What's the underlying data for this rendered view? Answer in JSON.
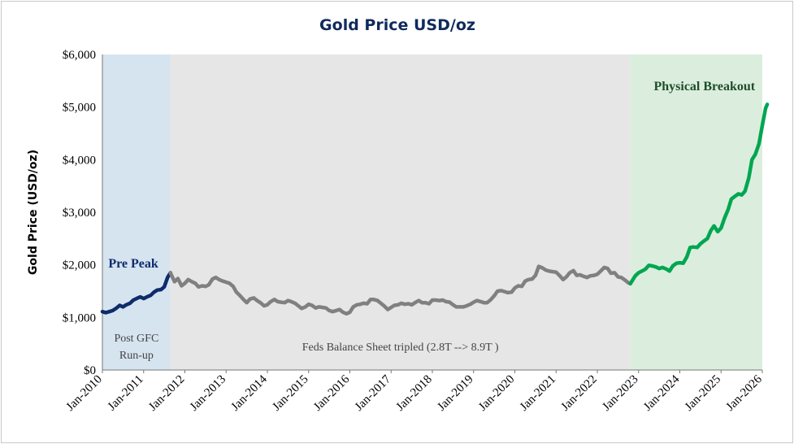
{
  "chart_data": {
    "type": "line",
    "title": "Gold Price USD/oz",
    "ylabel": "Gold Price (USD/oz)",
    "xlabel": "",
    "ylim": [
      0,
      6000
    ],
    "y_ticks": [
      "$0",
      "$1,000",
      "$2,000",
      "$3,000",
      "$4,000",
      "$5,000",
      "$6,000"
    ],
    "x_ticks": [
      "Jan-2010",
      "Jan-2011",
      "Jan-2012",
      "Jan-2013",
      "Jan-2014",
      "Jan-2015",
      "Jan-2016",
      "Jan-2017",
      "Jan-2018",
      "Jan-2019",
      "Jan-2020",
      "Jan-2021",
      "Jan-2022",
      "Jan-2023",
      "Jan-2024",
      "Jan-2025",
      "Jan-2026"
    ],
    "x_range": [
      2010.0,
      2026.0
    ],
    "grid": false,
    "regions": [
      {
        "name": "pre",
        "x0": 2010.0,
        "x1": 2011.65,
        "color": "#d6e4f0",
        "labels": [
          {
            "text": "Post GFC",
            "kind": "plain"
          },
          {
            "text": "Run-up",
            "kind": "plain"
          },
          {
            "text": "Pre Peak",
            "kind": "bold"
          }
        ]
      },
      {
        "name": "mid",
        "x0": 2011.65,
        "x1": 2022.8,
        "color": "#e6e6e6",
        "labels": [
          {
            "text": "Feds Balance Sheet tripled (2.8T --> 8.9T )",
            "kind": "plain"
          }
        ]
      },
      {
        "name": "post",
        "x0": 2022.8,
        "x1": 2026.0,
        "color": "#dbeedd",
        "labels": [
          {
            "text": "Physical Breakout",
            "kind": "bold"
          }
        ]
      }
    ],
    "series": [
      {
        "color": "#0d2c6b",
        "points": [
          [
            2010.0,
            1110
          ],
          [
            2010.08,
            1090
          ],
          [
            2010.17,
            1110
          ],
          [
            2010.25,
            1130
          ],
          [
            2010.33,
            1170
          ],
          [
            2010.42,
            1230
          ],
          [
            2010.5,
            1200
          ],
          [
            2010.58,
            1240
          ],
          [
            2010.67,
            1270
          ],
          [
            2010.75,
            1330
          ],
          [
            2010.83,
            1360
          ],
          [
            2010.92,
            1390
          ],
          [
            2011.0,
            1360
          ],
          [
            2011.08,
            1390
          ],
          [
            2011.17,
            1420
          ],
          [
            2011.25,
            1480
          ],
          [
            2011.33,
            1520
          ],
          [
            2011.42,
            1530
          ],
          [
            2011.5,
            1580
          ],
          [
            2011.58,
            1760
          ],
          [
            2011.65,
            1850
          ]
        ]
      },
      {
        "color": "#808080",
        "points": [
          [
            2011.65,
            1850
          ],
          [
            2011.75,
            1680
          ],
          [
            2011.83,
            1740
          ],
          [
            2011.92,
            1600
          ],
          [
            2012.0,
            1650
          ],
          [
            2012.08,
            1720
          ],
          [
            2012.17,
            1680
          ],
          [
            2012.25,
            1650
          ],
          [
            2012.33,
            1580
          ],
          [
            2012.42,
            1600
          ],
          [
            2012.5,
            1590
          ],
          [
            2012.58,
            1620
          ],
          [
            2012.67,
            1730
          ],
          [
            2012.75,
            1760
          ],
          [
            2012.83,
            1720
          ],
          [
            2012.92,
            1690
          ],
          [
            2013.0,
            1670
          ],
          [
            2013.08,
            1650
          ],
          [
            2013.17,
            1590
          ],
          [
            2013.25,
            1480
          ],
          [
            2013.33,
            1420
          ],
          [
            2013.42,
            1340
          ],
          [
            2013.5,
            1280
          ],
          [
            2013.58,
            1350
          ],
          [
            2013.67,
            1370
          ],
          [
            2013.75,
            1320
          ],
          [
            2013.83,
            1280
          ],
          [
            2013.92,
            1220
          ],
          [
            2014.0,
            1240
          ],
          [
            2014.08,
            1300
          ],
          [
            2014.17,
            1340
          ],
          [
            2014.25,
            1300
          ],
          [
            2014.33,
            1290
          ],
          [
            2014.42,
            1280
          ],
          [
            2014.5,
            1320
          ],
          [
            2014.58,
            1300
          ],
          [
            2014.67,
            1270
          ],
          [
            2014.75,
            1220
          ],
          [
            2014.83,
            1170
          ],
          [
            2014.92,
            1200
          ],
          [
            2015.0,
            1250
          ],
          [
            2015.08,
            1230
          ],
          [
            2015.17,
            1180
          ],
          [
            2015.25,
            1200
          ],
          [
            2015.33,
            1190
          ],
          [
            2015.42,
            1180
          ],
          [
            2015.5,
            1130
          ],
          [
            2015.58,
            1110
          ],
          [
            2015.67,
            1130
          ],
          [
            2015.75,
            1150
          ],
          [
            2015.83,
            1100
          ],
          [
            2015.92,
            1070
          ],
          [
            2016.0,
            1100
          ],
          [
            2016.08,
            1200
          ],
          [
            2016.17,
            1240
          ],
          [
            2016.25,
            1250
          ],
          [
            2016.33,
            1270
          ],
          [
            2016.42,
            1260
          ],
          [
            2016.5,
            1340
          ],
          [
            2016.58,
            1340
          ],
          [
            2016.67,
            1320
          ],
          [
            2016.75,
            1270
          ],
          [
            2016.83,
            1220
          ],
          [
            2016.92,
            1150
          ],
          [
            2017.0,
            1190
          ],
          [
            2017.08,
            1230
          ],
          [
            2017.17,
            1240
          ],
          [
            2017.25,
            1270
          ],
          [
            2017.33,
            1250
          ],
          [
            2017.42,
            1260
          ],
          [
            2017.5,
            1240
          ],
          [
            2017.58,
            1280
          ],
          [
            2017.67,
            1320
          ],
          [
            2017.75,
            1280
          ],
          [
            2017.83,
            1280
          ],
          [
            2017.92,
            1260
          ],
          [
            2018.0,
            1330
          ],
          [
            2018.08,
            1330
          ],
          [
            2018.17,
            1320
          ],
          [
            2018.25,
            1330
          ],
          [
            2018.33,
            1300
          ],
          [
            2018.42,
            1290
          ],
          [
            2018.5,
            1240
          ],
          [
            2018.58,
            1200
          ],
          [
            2018.67,
            1200
          ],
          [
            2018.75,
            1200
          ],
          [
            2018.83,
            1220
          ],
          [
            2018.92,
            1250
          ],
          [
            2019.0,
            1290
          ],
          [
            2019.08,
            1320
          ],
          [
            2019.17,
            1300
          ],
          [
            2019.25,
            1280
          ],
          [
            2019.33,
            1280
          ],
          [
            2019.42,
            1340
          ],
          [
            2019.5,
            1410
          ],
          [
            2019.58,
            1500
          ],
          [
            2019.67,
            1510
          ],
          [
            2019.75,
            1490
          ],
          [
            2019.83,
            1470
          ],
          [
            2019.92,
            1480
          ],
          [
            2020.0,
            1560
          ],
          [
            2020.08,
            1600
          ],
          [
            2020.17,
            1590
          ],
          [
            2020.25,
            1690
          ],
          [
            2020.33,
            1720
          ],
          [
            2020.42,
            1730
          ],
          [
            2020.5,
            1800
          ],
          [
            2020.58,
            1970
          ],
          [
            2020.67,
            1940
          ],
          [
            2020.75,
            1900
          ],
          [
            2020.83,
            1880
          ],
          [
            2020.92,
            1870
          ],
          [
            2021.0,
            1860
          ],
          [
            2021.08,
            1800
          ],
          [
            2021.17,
            1720
          ],
          [
            2021.25,
            1770
          ],
          [
            2021.33,
            1850
          ],
          [
            2021.42,
            1890
          ],
          [
            2021.5,
            1800
          ],
          [
            2021.58,
            1810
          ],
          [
            2021.67,
            1780
          ],
          [
            2021.75,
            1760
          ],
          [
            2021.83,
            1790
          ],
          [
            2021.92,
            1800
          ],
          [
            2022.0,
            1820
          ],
          [
            2022.08,
            1880
          ],
          [
            2022.17,
            1950
          ],
          [
            2022.25,
            1930
          ],
          [
            2022.33,
            1840
          ],
          [
            2022.42,
            1850
          ],
          [
            2022.5,
            1770
          ],
          [
            2022.58,
            1760
          ],
          [
            2022.67,
            1710
          ],
          [
            2022.75,
            1660
          ],
          [
            2022.8,
            1640
          ]
        ]
      },
      {
        "color": "#00a651",
        "points": [
          [
            2022.8,
            1640
          ],
          [
            2022.92,
            1790
          ],
          [
            2023.0,
            1850
          ],
          [
            2023.08,
            1880
          ],
          [
            2023.17,
            1920
          ],
          [
            2023.25,
            1990
          ],
          [
            2023.33,
            1980
          ],
          [
            2023.42,
            1960
          ],
          [
            2023.5,
            1930
          ],
          [
            2023.58,
            1950
          ],
          [
            2023.67,
            1920
          ],
          [
            2023.75,
            1880
          ],
          [
            2023.83,
            1980
          ],
          [
            2023.92,
            2030
          ],
          [
            2024.0,
            2040
          ],
          [
            2024.08,
            2030
          ],
          [
            2024.17,
            2150
          ],
          [
            2024.25,
            2330
          ],
          [
            2024.33,
            2340
          ],
          [
            2024.42,
            2330
          ],
          [
            2024.5,
            2400
          ],
          [
            2024.58,
            2450
          ],
          [
            2024.67,
            2500
          ],
          [
            2024.75,
            2650
          ],
          [
            2024.83,
            2740
          ],
          [
            2024.92,
            2630
          ],
          [
            2025.0,
            2700
          ],
          [
            2025.08,
            2880
          ],
          [
            2025.17,
            3050
          ],
          [
            2025.25,
            3250
          ],
          [
            2025.33,
            3300
          ],
          [
            2025.42,
            3350
          ],
          [
            2025.5,
            3330
          ],
          [
            2025.58,
            3400
          ],
          [
            2025.67,
            3650
          ],
          [
            2025.75,
            4000
          ],
          [
            2025.83,
            4100
          ],
          [
            2025.92,
            4300
          ],
          [
            2026.0,
            4650
          ],
          [
            2026.08,
            4980
          ],
          [
            2026.12,
            5050
          ]
        ]
      }
    ]
  }
}
